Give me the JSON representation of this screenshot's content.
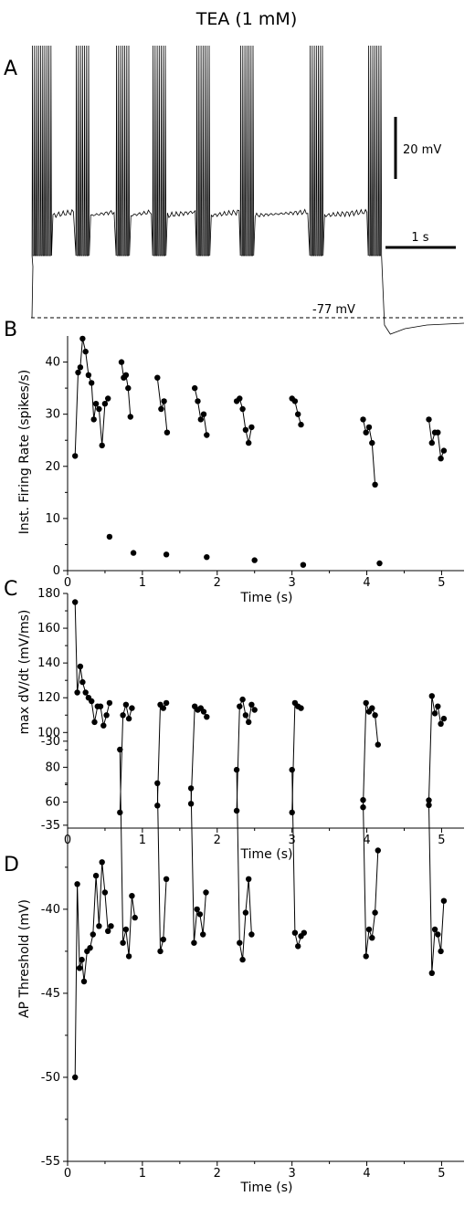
{
  "figure": {
    "title": "TEA (1 mM)",
    "panels": {
      "A": "A",
      "B": "B",
      "C": "C",
      "D": "D"
    }
  },
  "chart_data": [
    {
      "panel": "A",
      "type": "line",
      "title": "",
      "xlabel": "",
      "ylabel": "",
      "description_units": "membrane potential trace",
      "scale_bar_voltage": "20 mV",
      "scale_bar_time": "1 s",
      "baseline_label": "-77 mV",
      "burst_start_times_s": [
        0.0,
        0.6,
        1.15,
        1.65,
        2.25,
        2.85,
        3.8,
        4.6
      ],
      "burst_spike_counts": [
        10,
        7,
        7,
        7,
        7,
        7,
        7,
        7
      ],
      "trace_end_s": 5.3
    },
    {
      "panel": "B",
      "type": "scatter",
      "title": "",
      "xlabel": "Time (s)",
      "ylabel": "Inst. Firing Rate (spikes/s)",
      "xlim": [
        0,
        5.3
      ],
      "ylim": [
        0,
        45
      ],
      "xticks": [
        "0",
        "1",
        "2",
        "3",
        "4",
        "5"
      ],
      "yticks": [
        "0",
        "10",
        "20",
        "30",
        "40"
      ],
      "lines": [
        {
          "x": [
            0.1,
            0.14,
            0.17,
            0.2,
            0.24,
            0.28,
            0.32,
            0.35,
            0.38,
            0.42,
            0.46,
            0.5,
            0.54
          ],
          "y": [
            22,
            38,
            39,
            44.5,
            42,
            37.5,
            36,
            29,
            32,
            31,
            24,
            32,
            33
          ]
        },
        {
          "x": [
            0.72,
            0.75,
            0.78,
            0.81,
            0.84
          ],
          "y": [
            40,
            37,
            37.5,
            35,
            29.5
          ]
        },
        {
          "x": [
            1.2,
            1.25,
            1.29,
            1.33
          ],
          "y": [
            37,
            31,
            32.5,
            26.5
          ]
        },
        {
          "x": [
            1.7,
            1.74,
            1.78,
            1.82,
            1.86
          ],
          "y": [
            35,
            32.5,
            29,
            30,
            26
          ]
        },
        {
          "x": [
            2.26,
            2.3,
            2.34,
            2.38,
            2.42,
            2.46
          ],
          "y": [
            32.5,
            33,
            31,
            27,
            24.5,
            27.5
          ]
        },
        {
          "x": [
            3.0,
            3.04,
            3.08,
            3.12
          ],
          "y": [
            33,
            32.5,
            30,
            28
          ]
        },
        {
          "x": [
            3.95,
            3.99,
            4.03,
            4.07,
            4.11
          ],
          "y": [
            29,
            26.5,
            27.5,
            24.5,
            16.5
          ]
        },
        {
          "x": [
            4.83,
            4.87,
            4.91,
            4.95,
            4.99,
            5.03
          ],
          "y": [
            29,
            24.5,
            26.5,
            26.5,
            21.5,
            23
          ]
        }
      ],
      "isolated_points": {
        "x": [
          0.56,
          0.88,
          1.32,
          1.86,
          2.5,
          3.15,
          4.17
        ],
        "y": [
          6.5,
          3.4,
          3.1,
          2.6,
          2.0,
          1.1,
          1.4
        ]
      }
    },
    {
      "panel": "C",
      "type": "scatter",
      "title": "",
      "xlabel": "Time (s)",
      "ylabel": "max dV/dt (mV/ms)",
      "xlim": [
        0,
        5.3
      ],
      "ylim": [
        45,
        180
      ],
      "xticks": [
        "0",
        "1",
        "2",
        "3",
        "4",
        "5"
      ],
      "yticks": [
        "60",
        "80",
        "100",
        "120",
        "140",
        "160",
        "180"
      ],
      "lines": [
        {
          "x": [
            0.1,
            0.13,
            0.17,
            0.2,
            0.24,
            0.28,
            0.32,
            0.36,
            0.4,
            0.44,
            0.48,
            0.52,
            0.56
          ],
          "y": [
            175,
            123,
            138,
            129,
            123,
            120,
            118,
            106,
            115,
            115,
            104,
            110,
            117
          ]
        },
        {
          "x": [
            0.7,
            0.74,
            0.78,
            0.82,
            0.86
          ],
          "y": [
            54,
            110,
            116,
            108,
            114
          ]
        },
        {
          "x": [
            1.2,
            1.24,
            1.28,
            1.32
          ],
          "y": [
            58,
            116,
            114,
            117
          ]
        },
        {
          "x": [
            1.65,
            1.7,
            1.74,
            1.78,
            1.82,
            1.86
          ],
          "y": [
            59,
            115,
            113,
            114,
            112,
            109
          ]
        },
        {
          "x": [
            2.26,
            2.3,
            2.34,
            2.38,
            2.42,
            2.46,
            2.5
          ],
          "y": [
            55,
            115,
            119,
            110,
            106,
            116,
            113
          ]
        },
        {
          "x": [
            3.0,
            3.04,
            3.08,
            3.12
          ],
          "y": [
            54,
            117,
            115,
            114
          ]
        },
        {
          "x": [
            3.95,
            3.99,
            4.03,
            4.07,
            4.11,
            4.15
          ],
          "y": [
            57,
            117,
            112,
            114,
            110,
            93
          ]
        },
        {
          "x": [
            4.83,
            4.87,
            4.91,
            4.95,
            4.99,
            5.03
          ],
          "y": [
            61,
            121,
            111,
            115,
            105,
            108
          ]
        }
      ]
    },
    {
      "panel": "D",
      "type": "scatter",
      "title": "",
      "xlabel": "Time (s)",
      "ylabel": "AP Threshold (mV)",
      "xlim": [
        0,
        5.3
      ],
      "ylim": [
        -55,
        -28
      ],
      "xticks": [
        "0",
        "1",
        "2",
        "3",
        "4",
        "5"
      ],
      "yticks": [
        "-30",
        "-35",
        "-40",
        "-45",
        "-50",
        "-55"
      ],
      "lines": [
        {
          "x": [
            0.1,
            0.13,
            0.16,
            0.19,
            0.22,
            0.26,
            0.3,
            0.34,
            0.38,
            0.42,
            0.46,
            0.5,
            0.54,
            0.58
          ],
          "y": [
            -50,
            -38.5,
            -43.5,
            -43,
            -44.3,
            -42.5,
            -42.3,
            -41.5,
            -38,
            -41,
            -37.2,
            -39,
            -41.3,
            -41
          ]
        },
        {
          "x": [
            0.7,
            0.74,
            0.78,
            0.82,
            0.86,
            0.9
          ],
          "y": [
            -30.5,
            -42,
            -41.2,
            -42.8,
            -39.2,
            -40.5
          ]
        },
        {
          "x": [
            1.2,
            1.24,
            1.28,
            1.32
          ],
          "y": [
            -32.5,
            -42.5,
            -41.8,
            -38.2
          ]
        },
        {
          "x": [
            1.65,
            1.69,
            1.73,
            1.77,
            1.81,
            1.85
          ],
          "y": [
            -32.8,
            -42,
            -40,
            -40.3,
            -41.5,
            -39
          ]
        },
        {
          "x": [
            2.26,
            2.3,
            2.34,
            2.38,
            2.42,
            2.46
          ],
          "y": [
            -31.7,
            -42,
            -43,
            -40.2,
            -38.2,
            -41.5
          ]
        },
        {
          "x": [
            3.0,
            3.04,
            3.08,
            3.12,
            3.16
          ],
          "y": [
            -31.7,
            -41.4,
            -42.2,
            -41.6,
            -41.4
          ]
        },
        {
          "x": [
            3.95,
            3.99,
            4.03,
            4.07,
            4.11,
            4.15
          ],
          "y": [
            -33.5,
            -42.8,
            -41.2,
            -41.7,
            -40.2,
            -36.5
          ]
        },
        {
          "x": [
            4.83,
            4.87,
            4.91,
            4.95,
            4.99,
            5.03
          ],
          "y": [
            -33.8,
            -43.8,
            -41.2,
            -41.5,
            -42.5,
            -39.5
          ]
        }
      ]
    }
  ]
}
